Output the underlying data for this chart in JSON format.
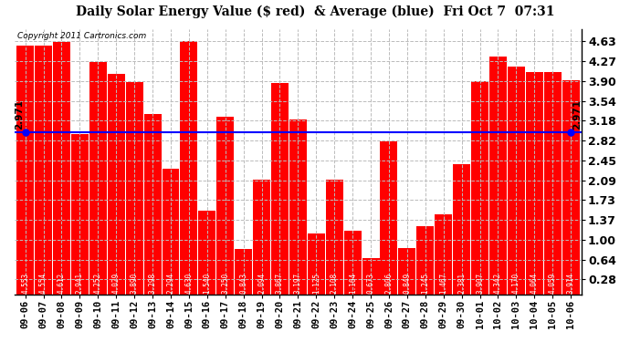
{
  "title": "Daily Solar Energy Value ($ red)  & Average (blue)  Fri Oct 7  07:31",
  "copyright": "Copyright 2011 Cartronics.com",
  "categories": [
    "09-06",
    "09-07",
    "09-08",
    "09-09",
    "09-10",
    "09-11",
    "09-12",
    "09-13",
    "09-14",
    "09-15",
    "09-16",
    "09-17",
    "09-18",
    "09-19",
    "09-20",
    "09-21",
    "09-22",
    "09-23",
    "09-24",
    "09-25",
    "09-26",
    "09-27",
    "09-28",
    "09-29",
    "09-30",
    "10-01",
    "10-02",
    "10-03",
    "10-04",
    "10-05",
    "10-06"
  ],
  "values": [
    4.553,
    4.554,
    4.612,
    2.941,
    4.252,
    4.029,
    3.89,
    3.298,
    2.294,
    4.63,
    1.54,
    3.25,
    0.843,
    2.094,
    3.867,
    3.197,
    1.125,
    2.108,
    1.164,
    0.673,
    2.806,
    0.849,
    1.245,
    1.467,
    2.381,
    3.907,
    4.342,
    4.17,
    4.064,
    4.059,
    3.914
  ],
  "average": 2.971,
  "bar_color": "#ff0000",
  "avg_line_color": "#0000ff",
  "background_color": "#ffffff",
  "plot_bg_color": "#ffffff",
  "grid_color": "#bbbbbb",
  "yticks": [
    0.28,
    0.64,
    1.0,
    1.37,
    1.73,
    2.09,
    2.45,
    2.82,
    3.18,
    3.54,
    3.9,
    4.27,
    4.63
  ],
  "ylim": [
    0.0,
    4.85
  ],
  "avg_label": "2.971",
  "title_fontsize": 10,
  "copyright_fontsize": 6.5,
  "tick_fontsize": 7.5,
  "bar_label_fontsize": 5.5,
  "ytick_fontsize": 9
}
